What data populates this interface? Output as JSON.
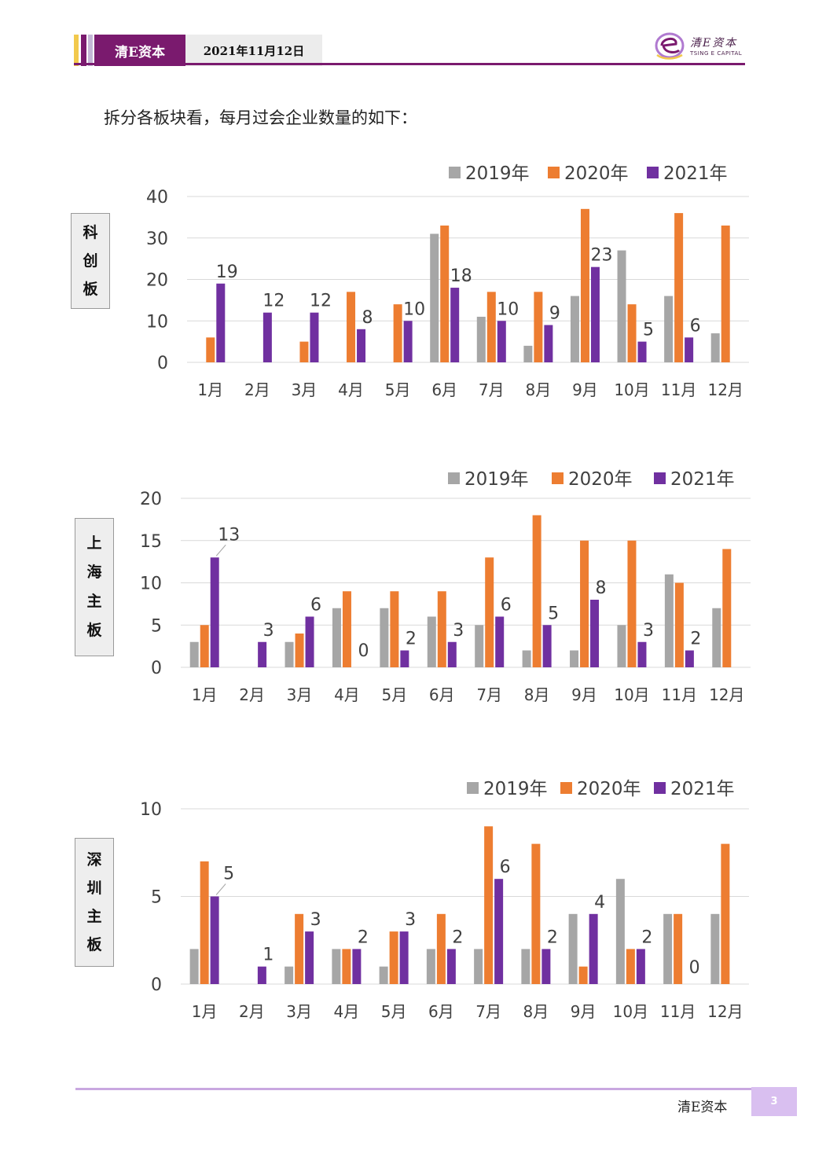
{
  "header": {
    "brand": "清E资本",
    "date": "2021年11月12日",
    "logo_cn": "清E资本",
    "logo_en": "TSING E CAPITAL"
  },
  "intro": "拆分各板块看，每月过会企业数量的如下：",
  "colors": {
    "c2019": "#a6a6a6",
    "c2020": "#ed7d31",
    "c2021": "#7030a0",
    "grid": "#d9d9d9",
    "brand": "#7a1a6e"
  },
  "boards": [
    {
      "label": "科创板",
      "chars": [
        "科",
        "创",
        "板"
      ]
    },
    {
      "label": "上海主板",
      "chars": [
        "上",
        "海",
        "主",
        "板"
      ]
    },
    {
      "label": "深圳主板",
      "chars": [
        "深",
        "圳",
        "主",
        "板"
      ]
    }
  ],
  "chart_data": [
    {
      "type": "bar",
      "title": "",
      "categories": [
        "1月",
        "2月",
        "3月",
        "4月",
        "5月",
        "6月",
        "7月",
        "8月",
        "9月",
        "10月",
        "11月",
        "12月"
      ],
      "ylim": [
        0,
        40
      ],
      "yticks": [
        0,
        10,
        20,
        30,
        40
      ],
      "series": [
        {
          "name": "2019年",
          "values": [
            0,
            0,
            0,
            0,
            0,
            31,
            11,
            4,
            16,
            27,
            16,
            7
          ]
        },
        {
          "name": "2020年",
          "values": [
            6,
            0,
            5,
            17,
            14,
            33,
            17,
            17,
            37,
            14,
            36,
            33
          ]
        },
        {
          "name": "2021年",
          "values": [
            19,
            12,
            12,
            8,
            10,
            18,
            10,
            9,
            23,
            5,
            6,
            null
          ]
        }
      ],
      "data_labels_series": "2021年",
      "legend": "top-right",
      "grid": true
    },
    {
      "type": "bar",
      "title": "",
      "categories": [
        "1月",
        "2月",
        "3月",
        "4月",
        "5月",
        "6月",
        "7月",
        "8月",
        "9月",
        "10月",
        "11月",
        "12月"
      ],
      "ylim": [
        0,
        20
      ],
      "yticks": [
        0,
        5,
        10,
        15,
        20
      ],
      "series": [
        {
          "name": "2019年",
          "values": [
            3,
            0,
            3,
            7,
            7,
            6,
            5,
            2,
            2,
            5,
            11,
            7
          ]
        },
        {
          "name": "2020年",
          "values": [
            5,
            0,
            4,
            9,
            9,
            9,
            13,
            18,
            15,
            15,
            10,
            14
          ]
        },
        {
          "name": "2021年",
          "values": [
            13,
            3,
            6,
            0,
            2,
            3,
            6,
            5,
            8,
            3,
            2,
            null
          ]
        }
      ],
      "data_labels_series": "2021年",
      "legend": "top-right",
      "grid": true
    },
    {
      "type": "bar",
      "title": "",
      "categories": [
        "1月",
        "2月",
        "3月",
        "4月",
        "5月",
        "6月",
        "7月",
        "8月",
        "9月",
        "10月",
        "11月",
        "12月"
      ],
      "ylim": [
        0,
        10
      ],
      "yticks": [
        0,
        5,
        10
      ],
      "series": [
        {
          "name": "2019年",
          "values": [
            2,
            0,
            1,
            2,
            1,
            2,
            2,
            2,
            4,
            6,
            4,
            4
          ]
        },
        {
          "name": "2020年",
          "values": [
            7,
            0,
            4,
            2,
            3,
            4,
            9,
            8,
            1,
            2,
            4,
            8
          ]
        },
        {
          "name": "2021年",
          "values": [
            5,
            1,
            3,
            2,
            3,
            2,
            6,
            2,
            4,
            2,
            0,
            null
          ]
        }
      ],
      "data_labels_series": "2021年",
      "legend": "top-right",
      "grid": true
    }
  ],
  "footer": {
    "brand": "清E资本",
    "page": "3"
  }
}
